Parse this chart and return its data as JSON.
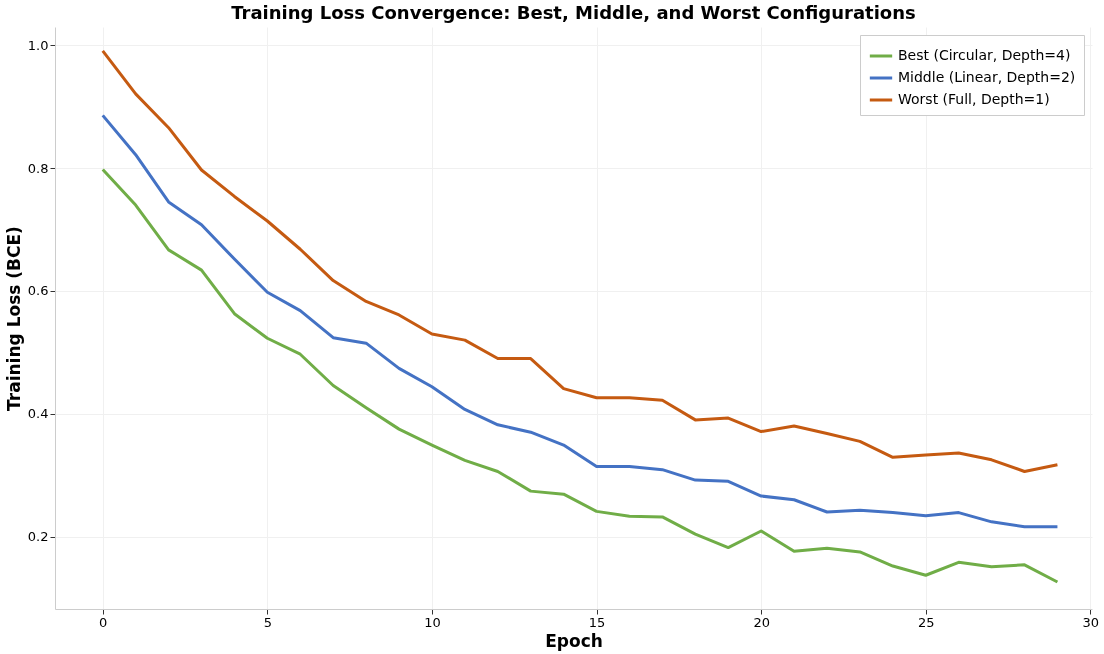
{
  "chart_data": {
    "type": "line",
    "title": "Training Loss Convergence: Best, Middle, and Worst Configurations",
    "xlabel": "Epoch",
    "ylabel": "Training Loss (BCE)",
    "x": [
      0,
      1,
      2,
      3,
      4,
      5,
      6,
      7,
      8,
      9,
      10,
      11,
      12,
      13,
      14,
      15,
      16,
      17,
      18,
      19,
      20,
      21,
      22,
      23,
      24,
      25,
      26,
      27,
      28,
      29
    ],
    "series": [
      {
        "name": "Best (Circular, Depth=4)",
        "color": "#70ad47",
        "values": [
          0.798,
          0.74,
          0.667,
          0.634,
          0.563,
          0.523,
          0.497,
          0.446,
          0.41,
          0.375,
          0.349,
          0.324,
          0.306,
          0.274,
          0.269,
          0.241,
          0.233,
          0.232,
          0.204,
          0.182,
          0.209,
          0.176,
          0.181,
          0.175,
          0.152,
          0.137,
          0.158,
          0.151,
          0.154,
          0.126
        ]
      },
      {
        "name": "Middle (Linear, Depth=2)",
        "color": "#4472c4",
        "values": [
          0.886,
          0.822,
          0.745,
          0.708,
          0.652,
          0.598,
          0.568,
          0.524,
          0.515,
          0.474,
          0.444,
          0.407,
          0.382,
          0.37,
          0.349,
          0.314,
          0.314,
          0.309,
          0.292,
          0.29,
          0.266,
          0.26,
          0.24,
          0.243,
          0.239,
          0.234,
          0.239,
          0.224,
          0.216,
          0.216
        ]
      },
      {
        "name": "Worst (Full, Depth=1)",
        "color": "#c55a11",
        "values": [
          0.991,
          0.921,
          0.866,
          0.797,
          0.754,
          0.714,
          0.668,
          0.617,
          0.583,
          0.561,
          0.53,
          0.52,
          0.49,
          0.49,
          0.441,
          0.426,
          0.426,
          0.422,
          0.39,
          0.393,
          0.371,
          0.38,
          0.368,
          0.355,
          0.329,
          0.333,
          0.336,
          0.325,
          0.306,
          0.317
        ]
      }
    ],
    "xlim": [
      -1.45,
      30.05
    ],
    "xticks": [
      0,
      5,
      10,
      15,
      20,
      25,
      30
    ],
    "ylim": [
      0.082,
      1.03
    ],
    "yticks": [
      0.2,
      0.4,
      0.6,
      0.8,
      {
        "value": 1,
        "label": "1.0"
      }
    ],
    "grid": true,
    "legend": "top right",
    "marker": "none",
    "line_style": "solid"
  }
}
